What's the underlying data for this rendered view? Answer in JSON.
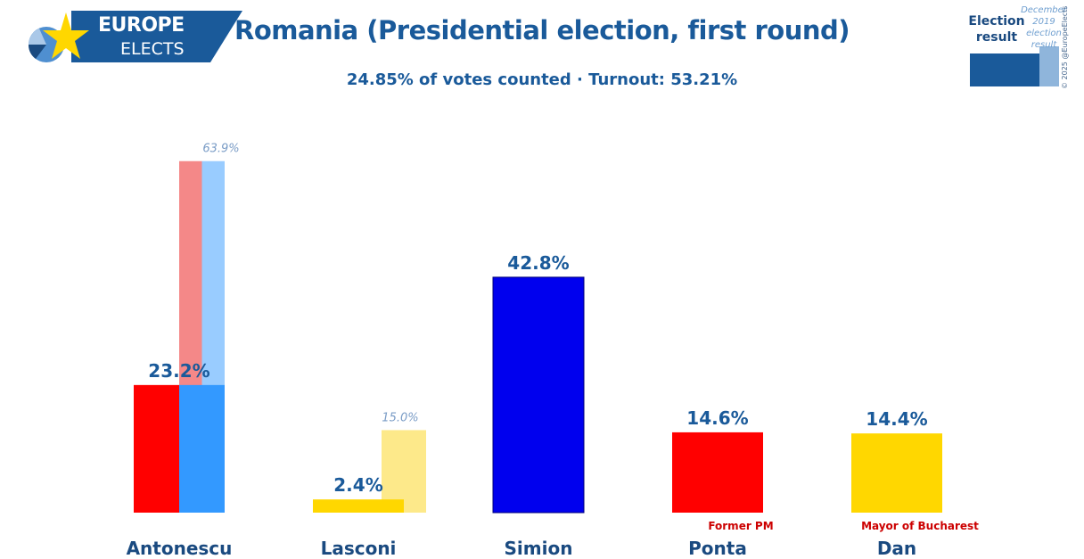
{
  "logo": {
    "line1": "EUROPE",
    "line2": "ELECTS"
  },
  "header": {
    "title": "Romania (Presidential election, first round)",
    "subtitle": "24.85% of votes counted · Turnout: 53.21%"
  },
  "legend": {
    "current_label_1": "Election",
    "current_label_2": "result",
    "previous_line_1": "December 2019",
    "previous_line_2": "election",
    "previous_line_3": "result",
    "copyright": "© 2025 @EuropeElects"
  },
  "colors": {
    "brand_blue": "#1a5a9a",
    "label_blue": "#1a4a80",
    "previous_label": "#7a9cc6",
    "note_red": "#cc0000"
  },
  "chart_data": {
    "type": "bar",
    "ylim": [
      0,
      70
    ],
    "categories": [
      "Antonescu",
      "Lasconi",
      "Simion",
      "Ponta",
      "Dan"
    ],
    "values": [
      23.2,
      2.4,
      42.8,
      14.6,
      14.4
    ],
    "value_labels": [
      "23.2%",
      "2.4%",
      "42.8%",
      "14.6%",
      "14.4%"
    ],
    "previous_values": [
      63.9,
      15.0,
      null,
      null,
      null
    ],
    "previous_labels": [
      "63.9%",
      "15.0%",
      "",
      "",
      ""
    ],
    "colors": [
      [
        "#ff0000",
        "#3399ff"
      ],
      [
        "#ffd700"
      ],
      [
        "#0000ee"
      ],
      [
        "#ff0000"
      ],
      [
        "#ffd700"
      ]
    ],
    "previous_colors": [
      [
        "#f48888",
        "#99ccff"
      ],
      [
        "#fde98a"
      ],
      [],
      [],
      []
    ],
    "notes": [
      "",
      "",
      "",
      "Former PM",
      "Mayor of Bucharest"
    ]
  }
}
